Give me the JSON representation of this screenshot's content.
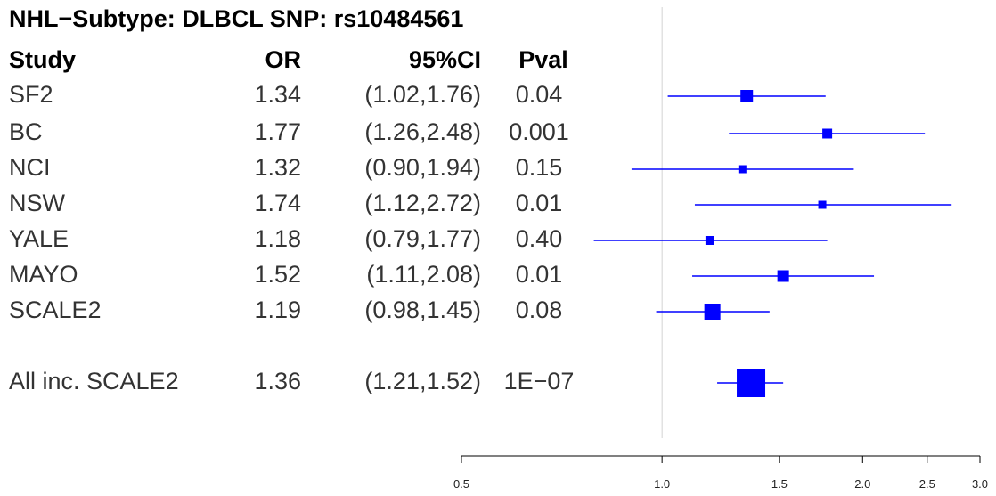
{
  "title": "NHL−Subtype: DLBCL SNP: rs10484561",
  "headers": {
    "study": "Study",
    "or": "OR",
    "ci": "95%CI",
    "pval": "Pval"
  },
  "colors": {
    "marker": "#0000ff",
    "refline": "#d3d3d3",
    "axis": "#000000"
  },
  "chart_data": {
    "type": "forest",
    "scale": "log",
    "reference_value": 1.0,
    "xlim": [
      0.5,
      3.0
    ],
    "x_ticks": [
      0.5,
      1.0,
      1.5,
      2.0,
      2.5,
      3.0
    ],
    "x_tick_labels": [
      "0.5",
      "1.0",
      "1.5",
      "2.0",
      "2.5",
      "3.0"
    ],
    "rows": [
      {
        "study": "SF2",
        "or": 1.34,
        "lo": 1.02,
        "hi": 1.76,
        "or_text": "1.34",
        "ci_text": "(1.02,1.76)",
        "pval": "0.04"
      },
      {
        "study": "BC",
        "or": 1.77,
        "lo": 1.26,
        "hi": 2.48,
        "or_text": "1.77",
        "ci_text": "(1.26,2.48)",
        "pval": "0.001"
      },
      {
        "study": "NCI",
        "or": 1.32,
        "lo": 0.9,
        "hi": 1.94,
        "or_text": "1.32",
        "ci_text": "(0.90,1.94)",
        "pval": "0.15"
      },
      {
        "study": "NSW",
        "or": 1.74,
        "lo": 1.12,
        "hi": 2.72,
        "or_text": "1.74",
        "ci_text": "(1.12,2.72)",
        "pval": "0.01"
      },
      {
        "study": "YALE",
        "or": 1.18,
        "lo": 0.79,
        "hi": 1.77,
        "or_text": "1.18",
        "ci_text": "(0.79,1.77)",
        "pval": "0.40"
      },
      {
        "study": "MAYO",
        "or": 1.52,
        "lo": 1.11,
        "hi": 2.08,
        "or_text": "1.52",
        "ci_text": "(1.11,2.08)",
        "pval": "0.01"
      },
      {
        "study": "SCALE2",
        "or": 1.19,
        "lo": 0.98,
        "hi": 1.45,
        "or_text": "1.19",
        "ci_text": "(0.98,1.45)",
        "pval": "0.08"
      }
    ],
    "summary": {
      "study": "All inc. SCALE2",
      "or": 1.36,
      "lo": 1.21,
      "hi": 1.52,
      "or_text": "1.36",
      "ci_text": "(1.21,1.52)",
      "pval": "1E−07"
    }
  }
}
